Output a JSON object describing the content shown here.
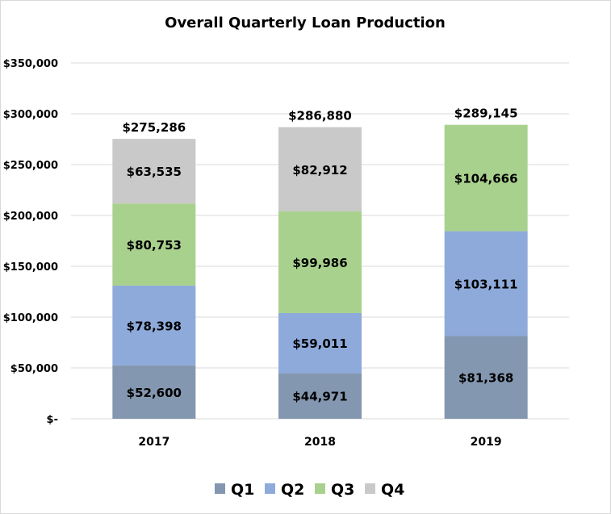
{
  "chart_data": {
    "type": "bar",
    "stacked": true,
    "title": "Overall Quarterly Loan Production",
    "xlabel": "",
    "ylabel": "",
    "categories": [
      "2017",
      "2018",
      "2019"
    ],
    "series": [
      {
        "name": "Q1",
        "color": "#8497b0",
        "values": [
          52600,
          44971,
          81368
        ],
        "labels": [
          "$52,600",
          "$44,971",
          "$81,368"
        ]
      },
      {
        "name": "Q2",
        "color": "#8eaadb",
        "values": [
          78398,
          59011,
          103111
        ],
        "labels": [
          "$78,398",
          "$59,011",
          "$103,111"
        ]
      },
      {
        "name": "Q3",
        "color": "#a9d18e",
        "values": [
          80753,
          99986,
          104666
        ],
        "labels": [
          "$80,753",
          "$99,986",
          "$104,666"
        ]
      },
      {
        "name": "Q4",
        "color": "#c9c9c9",
        "values": [
          63535,
          82912,
          0
        ],
        "labels": [
          "$63,535",
          "$82,912",
          ""
        ]
      }
    ],
    "totals": [
      275286,
      286880,
      289145
    ],
    "total_labels": [
      "$275,286",
      "$286,880",
      "$289,145"
    ],
    "ylim": [
      0,
      350000
    ],
    "yticks": [
      0,
      50000,
      100000,
      150000,
      200000,
      250000,
      300000,
      350000
    ],
    "ytick_labels": [
      "$-",
      "$50,000",
      "$100,000",
      "$150,000",
      "$200,000",
      "$250,000",
      "$300,000",
      "$350,000"
    ],
    "grid": true,
    "legend_position": "bottom"
  }
}
